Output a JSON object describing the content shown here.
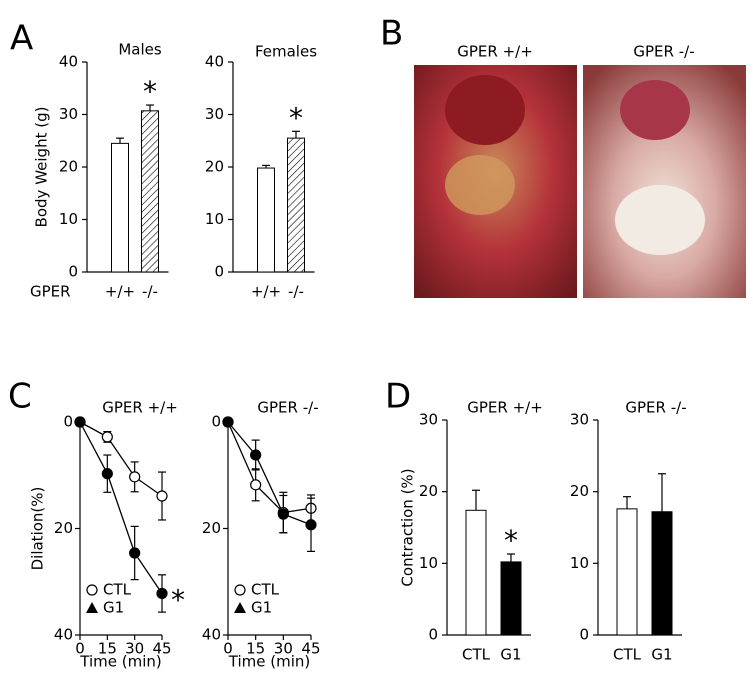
{
  "panel_labels": [
    "A",
    "B",
    "C",
    "D"
  ],
  "photos": {
    "titles": [
      "GPER +/+",
      "GPER -/-"
    ]
  },
  "chart_data": [
    {
      "type": "bar",
      "title": "Males",
      "ylabel": "Body Weight (g)",
      "xlabel": "GPER",
      "categories": [
        "+/+",
        "-/-"
      ],
      "values": [
        24.5,
        30.7
      ],
      "errors": [
        1.0,
        1.1
      ],
      "colors": [
        "#ffffff",
        "#ffffff"
      ],
      "patterns": [
        "none",
        "hatch"
      ],
      "ylim": [
        0,
        40
      ],
      "yticks": [
        0,
        10,
        20,
        30,
        40
      ],
      "annotations": [
        {
          "text": "*",
          "index": 1
        }
      ]
    },
    {
      "type": "bar",
      "title": "Females",
      "categories": [
        "+/+",
        "-/-"
      ],
      "values": [
        19.8,
        25.5
      ],
      "errors": [
        0.5,
        1.3
      ],
      "colors": [
        "#ffffff",
        "#ffffff"
      ],
      "patterns": [
        "none",
        "hatch"
      ],
      "ylim": [
        0,
        40
      ],
      "yticks": [
        0,
        10,
        20,
        30,
        40
      ],
      "annotations": [
        {
          "text": "*",
          "index": 1
        }
      ]
    },
    {
      "type": "line",
      "title": "GPER +/+",
      "ylabel": "Dilation(%)",
      "xlabel": "Time (min)",
      "x": [
        0,
        15,
        30,
        45
      ],
      "xlim": [
        0,
        45
      ],
      "xticks": [
        0,
        15,
        30,
        45
      ],
      "ylim": [
        0,
        40
      ],
      "yticks": [
        0,
        20,
        40
      ],
      "invert_y": true,
      "series": [
        {
          "name": "CTL",
          "color": "#ffffff",
          "legend_symbol": "circle",
          "values": [
            0,
            2.8,
            10.3,
            13.9
          ],
          "errors": [
            0,
            1.0,
            2.8,
            4.5
          ]
        },
        {
          "name": "G1",
          "color": "#000000",
          "legend_symbol": "triangle",
          "values": [
            0,
            9.7,
            24.6,
            32.2
          ],
          "errors": [
            0,
            3.5,
            5.0,
            3.5
          ]
        }
      ],
      "annotations": [
        {
          "text": "*",
          "series": 1,
          "index": 3
        }
      ]
    },
    {
      "type": "line",
      "title": "GPER -/-",
      "xlabel": "Time (min)",
      "x": [
        0,
        15,
        30,
        45
      ],
      "xlim": [
        0,
        45
      ],
      "xticks": [
        0,
        15,
        30,
        45
      ],
      "ylim": [
        0,
        40
      ],
      "yticks": [
        0,
        20,
        40
      ],
      "invert_y": true,
      "series": [
        {
          "name": "CTL",
          "color": "#ffffff",
          "legend_symbol": "circle",
          "values": [
            0,
            11.8,
            17.0,
            16.2
          ],
          "errors": [
            0,
            3.0,
            3.8,
            2.5
          ]
        },
        {
          "name": "G1",
          "color": "#000000",
          "legend_symbol": "triangle",
          "values": [
            0,
            6.2,
            17.3,
            19.3
          ],
          "errors": [
            0,
            2.8,
            3.5,
            5.0
          ]
        }
      ]
    },
    {
      "type": "bar",
      "title": "GPER +/+",
      "ylabel": "Contraction (%)",
      "categories": [
        "CTL",
        "G1"
      ],
      "values": [
        17.4,
        10.2
      ],
      "errors": [
        2.8,
        1.1
      ],
      "colors": [
        "#ffffff",
        "#000000"
      ],
      "patterns": [
        "none",
        "none"
      ],
      "ylim": [
        0,
        30
      ],
      "yticks": [
        0,
        10,
        20,
        30
      ],
      "annotations": [
        {
          "text": "*",
          "index": 1
        }
      ]
    },
    {
      "type": "bar",
      "title": "GPER -/-",
      "categories": [
        "CTL",
        "G1"
      ],
      "values": [
        17.6,
        17.2
      ],
      "errors": [
        1.7,
        5.3
      ],
      "colors": [
        "#ffffff",
        "#000000"
      ],
      "patterns": [
        "none",
        "none"
      ],
      "ylim": [
        0,
        30
      ],
      "yticks": [
        0,
        10,
        20,
        30
      ]
    }
  ]
}
